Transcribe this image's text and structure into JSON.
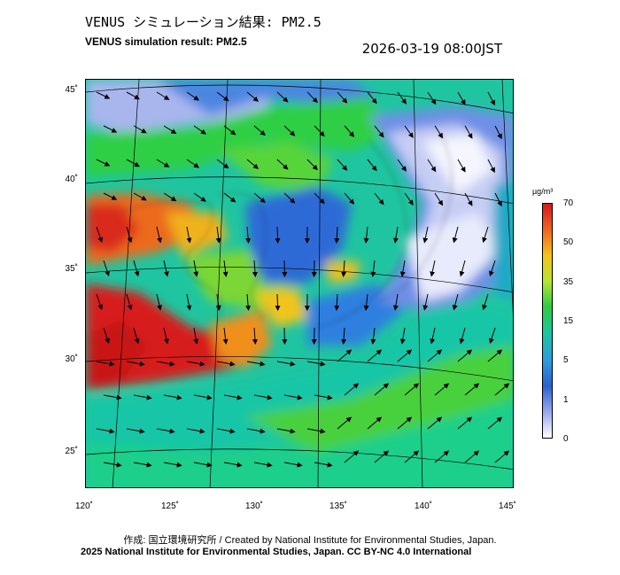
{
  "title_ja": "VENUS シミュレーション結果: PM2.5",
  "title_en": "VENUS simulation result: PM2.5",
  "timestamp": "2026-03-19 08:00JST",
  "latitude_labels": [
    "45˚",
    "40˚",
    "35˚",
    "30˚",
    "25˚"
  ],
  "longitude_labels": [
    "120˚",
    "125˚",
    "130˚",
    "135˚",
    "140˚",
    "145˚"
  ],
  "colorbar": {
    "unit": "µg/m³",
    "ticks": [
      "70",
      "50",
      "35",
      "15",
      "5",
      "1",
      "0"
    ],
    "colors": [
      "#d7191c",
      "#f0641e",
      "#f5c21c",
      "#b6e630",
      "#2ecc40",
      "#18c6a6",
      "#2d9be0",
      "#2a62d2",
      "#9aa8ec",
      "#ffffff"
    ]
  },
  "credit_line_1": "作成: 国立環境研究所 / Created by National Institute for Environmental Studies, Japan.",
  "credit_line_2": "2025 National Institute for Environmental Studies, Japan. CC BY-NC 4.0 International"
}
